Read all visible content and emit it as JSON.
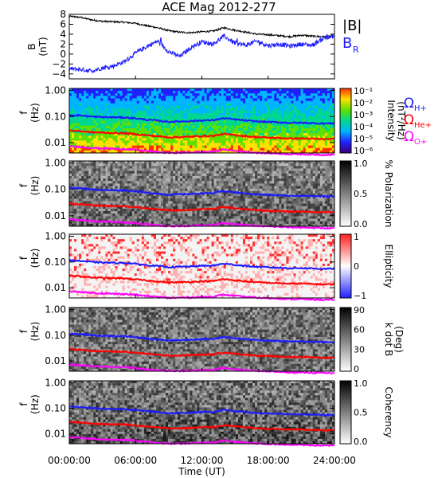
{
  "title": "ACE Mag 2012-277",
  "colors": {
    "bmag": "#000000",
    "br": "#1a1aff",
    "h": "#1a1aff",
    "he": "#ff0000",
    "o": "#ff00ff",
    "axis": "#000000"
  },
  "top_panel": {
    "ylabel": "B\n(nT)",
    "legend": [
      {
        "label": "|B|",
        "color_key": "bmag"
      },
      {
        "label": "BR",
        "color_key": "br"
      }
    ]
  },
  "gyro_legend": [
    {
      "label": "ΩH+",
      "symbol": "Ω",
      "sub": "H+",
      "color_key": "h"
    },
    {
      "label": "ΩHe+",
      "symbol": "Ω",
      "sub": "He+",
      "color_key": "he"
    },
    {
      "label": "ΩO+",
      "symbol": "Ω",
      "sub": "O+",
      "color_key": "o"
    }
  ],
  "x_axis": {
    "title": "Time (UT)",
    "ticks": [
      "00:00:00",
      "06:00:00",
      "12:00:00",
      "18:00:00",
      "24:00:00"
    ]
  },
  "freq_ticks": [
    "1.00",
    "0.10",
    "0.01"
  ],
  "panels": [
    {
      "name": "intensity",
      "ylabel": "f\n(Hz)",
      "colorbar_title": "Intensity\n(nT²/Hz)",
      "cb_ticks": [
        "10⁻¹",
        "10⁻²",
        "10⁻³",
        "10⁻⁴",
        "10⁻⁵",
        "10⁻⁶"
      ]
    },
    {
      "name": "polarization",
      "ylabel": "f\n(Hz)",
      "colorbar_title": "% Polarization",
      "cb_ticks": [
        "1.0",
        "0.5",
        "0.0"
      ]
    },
    {
      "name": "ellipticity",
      "ylabel": "f\n(Hz)",
      "colorbar_title": "Ellipticity",
      "cb_ticks": [
        "1",
        "0",
        "−1"
      ]
    },
    {
      "name": "kdotb",
      "ylabel": "f\n(Hz)",
      "colorbar_title": "k dot B\n(Deg)",
      "cb_ticks": [
        "90",
        "60",
        "30",
        "0"
      ]
    },
    {
      "name": "coherency",
      "ylabel": "f\n(Hz)",
      "colorbar_title": "Coherency",
      "cb_ticks": [
        "1.0",
        "0.5",
        "0.0"
      ]
    }
  ],
  "chart_data": [
    {
      "type": "line",
      "title": "ACE Mag 2012-277",
      "ylabel": "B (nT)",
      "xlabel": "Time (UT)",
      "x_hours": [
        0,
        1,
        2,
        3,
        4,
        5,
        6,
        7,
        8,
        9,
        10,
        11,
        12,
        13,
        14,
        15,
        16,
        17,
        18,
        19,
        20,
        21,
        22,
        23,
        24
      ],
      "ylim": [
        -5,
        8
      ],
      "y_ticks": [
        -4,
        -2,
        0,
        2,
        4,
        6,
        8
      ],
      "series": [
        {
          "name": "|B|",
          "values": [
            7.6,
            7.4,
            6.9,
            6.6,
            6.5,
            6.4,
            6.2,
            5.7,
            5.3,
            4.7,
            4.4,
            4.3,
            4.5,
            4.6,
            5.3,
            4.8,
            4.4,
            4.0,
            3.9,
            3.7,
            3.5,
            3.8,
            3.6,
            3.5,
            3.6
          ]
        },
        {
          "name": "BR",
          "values": [
            -3.0,
            -3.1,
            -3.4,
            -2.8,
            -2.4,
            -1.5,
            0.2,
            1.5,
            2.6,
            0.5,
            -0.5,
            1.3,
            2.5,
            2.0,
            3.6,
            2.2,
            1.8,
            2.6,
            1.7,
            2.0,
            1.6,
            2.0,
            1.8,
            3.2,
            3.6
          ]
        }
      ]
    },
    {
      "type": "heatmap",
      "name": "gyrofrequencies (overlaid on all spectral panels)",
      "ylabel": "f (Hz)",
      "y_scale": "log",
      "ylim": [
        0.004,
        1.2
      ],
      "x_hours": [
        0,
        1,
        2,
        3,
        4,
        5,
        6,
        7,
        8,
        9,
        10,
        11,
        12,
        13,
        14,
        15,
        16,
        17,
        18,
        19,
        20,
        21,
        22,
        23,
        24
      ],
      "series": [
        {
          "name": "ΩH+",
          "values": [
            0.115,
            0.11,
            0.1,
            0.095,
            0.093,
            0.092,
            0.085,
            0.075,
            0.07,
            0.063,
            0.065,
            0.067,
            0.071,
            0.072,
            0.086,
            0.077,
            0.07,
            0.065,
            0.062,
            0.06,
            0.057,
            0.058,
            0.056,
            0.054,
            0.055
          ]
        },
        {
          "name": "ΩHe+",
          "values": [
            0.029,
            0.0275,
            0.025,
            0.024,
            0.0233,
            0.023,
            0.021,
            0.019,
            0.0175,
            0.016,
            0.0163,
            0.0168,
            0.0178,
            0.018,
            0.0215,
            0.0193,
            0.0175,
            0.0163,
            0.0155,
            0.015,
            0.0143,
            0.0145,
            0.014,
            0.0135,
            0.0138
          ]
        },
        {
          "name": "ΩO+",
          "values": [
            0.0072,
            0.0069,
            0.0063,
            0.006,
            0.0058,
            0.0057,
            0.0053,
            0.0047,
            0.0044,
            0.004,
            0.0041,
            0.0042,
            0.0044,
            0.0045,
            0.0054,
            0.0048,
            0.0044,
            0.0041,
            0.0039,
            0.0038,
            0.0036,
            0.0036,
            0.0035,
            0.0034,
            0.0034
          ]
        }
      ]
    }
  ]
}
